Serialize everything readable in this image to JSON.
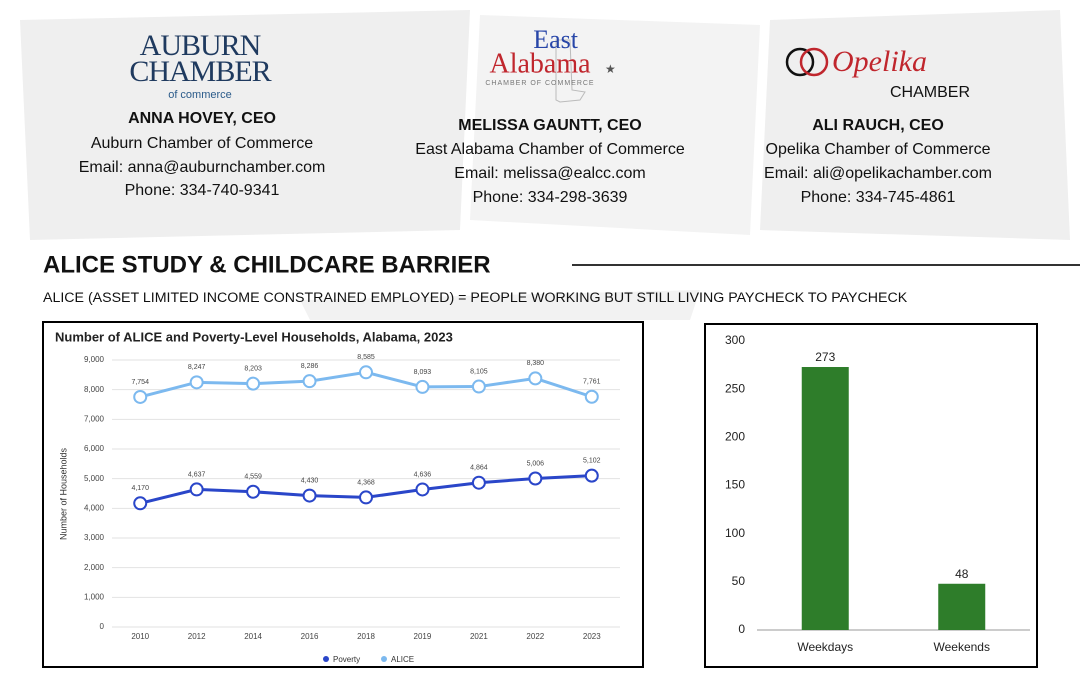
{
  "logos": {
    "auburn": {
      "line1": "AUBURN",
      "line2": "CHAMBER",
      "line3": "of commerce"
    },
    "east_alabama": {
      "line1": "East",
      "line2": "Alabama",
      "line3": "CHAMBER OF COMMERCE"
    },
    "opelika": {
      "line1": "Opelika",
      "line2": "CHAMBER"
    }
  },
  "contacts": [
    {
      "name": "ANNA HOVEY, CEO",
      "org": "Auburn Chamber of Commerce",
      "email": "Email: anna@auburnchamber.com",
      "phone": "Phone: 334-740-9341"
    },
    {
      "name": "MELISSA GAUNTT, CEO",
      "org": "East Alabama Chamber of Commerce",
      "email": "Email: melissa@ealcc.com",
      "phone": "Phone: 334-298-3639"
    },
    {
      "name": "ALI RAUCH, CEO",
      "org": "Opelika Chamber of Commerce",
      "email": "Email: ali@opelikachamber.com",
      "phone": "Phone: 334-745-4861"
    }
  ],
  "section": {
    "title": "ALICE STUDY & CHILDCARE BARRIER",
    "subtitle": "ALICE (ASSET LIMITED INCOME CONSTRAINED EMPLOYED) = PEOPLE WORKING BUT STILL LIVING PAYCHECK TO PAYCHECK"
  },
  "chart_data": [
    {
      "type": "line",
      "title": "Number of ALICE and Poverty-Level Households, Alabama, 2023",
      "y_label": "Number of Households",
      "categories": [
        "2010",
        "2012",
        "2014",
        "2016",
        "2018",
        "2019",
        "2021",
        "2022",
        "2023"
      ],
      "series": [
        {
          "name": "Poverty",
          "color": "#2a46c9",
          "values": [
            4170,
            4637,
            4559,
            4430,
            4368,
            4636,
            4864,
            5006,
            5102
          ],
          "value_labels": [
            "4,170",
            "4,637",
            "4,559",
            "4,430",
            "4,368",
            "4,636",
            "4,864",
            "5,006",
            "5,102"
          ]
        },
        {
          "name": "ALICE",
          "color": "#7cb9ef",
          "values": [
            7754,
            8247,
            8203,
            8286,
            8585,
            8093,
            8105,
            8380,
            7761
          ],
          "value_labels": [
            "7,754",
            "8,247",
            "8,203",
            "8,286",
            "8,585",
            "8,093",
            "8,105",
            "8,380",
            "7,761"
          ]
        }
      ],
      "ylim": [
        0,
        9000
      ],
      "yticks": [
        0,
        {
          "value": 1000,
          "label": "1,000"
        },
        {
          "value": 2000,
          "label": "2,000"
        },
        {
          "value": 3000,
          "label": "3,000"
        },
        {
          "value": 4000,
          "label": "4,000"
        },
        {
          "value": 5000,
          "label": "5,000"
        },
        {
          "value": 6000,
          "label": "6,000"
        },
        {
          "value": 7000,
          "label": "7,000"
        },
        {
          "value": 8000,
          "label": "8,000"
        },
        {
          "value": 9000,
          "label": "9,000"
        }
      ],
      "grid": true,
      "legend": "bottom"
    },
    {
      "type": "bar",
      "categories": [
        "Weekdays",
        "Weekends"
      ],
      "values": [
        273,
        48
      ],
      "color": "#2e7d2a",
      "ylim": [
        0,
        300
      ],
      "yticks": [
        0,
        50,
        100,
        150,
        200,
        250,
        300
      ],
      "grid": false
    }
  ]
}
